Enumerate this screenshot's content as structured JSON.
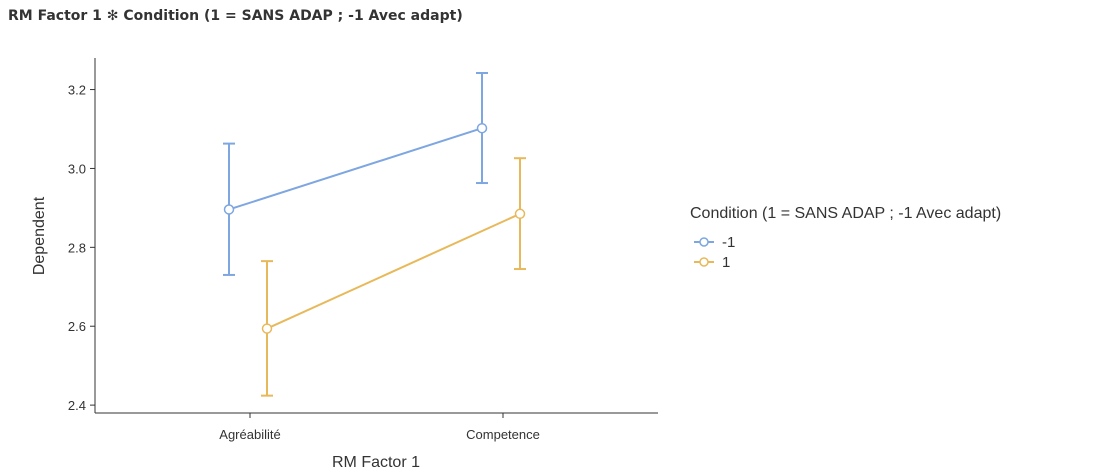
{
  "header": {
    "title_factor": "RM Factor 1",
    "title_symbol": "✻",
    "title_condition": "Condition (1 = SANS ADAP ; -1 Avec adapt)"
  },
  "chart_data": {
    "type": "line",
    "xlabel": "RM Factor 1",
    "ylabel": "Dependent",
    "categories": [
      "Agréabilité",
      "Competence"
    ],
    "ylim": [
      2.38,
      3.28
    ],
    "yticks": [
      2.4,
      2.6,
      2.8,
      3.0,
      3.2
    ],
    "ytick_labels": [
      "2.4",
      "2.6",
      "2.8",
      "3.0",
      "3.2"
    ],
    "grid": false,
    "legend": {
      "title": "Condition (1 = SANS ADAP ; -1 Avec adapt)",
      "placement": "right"
    },
    "series": [
      {
        "name": "-1",
        "color": "#7ea6e0",
        "values": [
          2.896,
          3.102
        ],
        "ci_lower": [
          2.73,
          2.963
        ],
        "ci_upper": [
          3.063,
          3.242
        ]
      },
      {
        "name": "1",
        "color": "#e8b95b",
        "values": [
          2.594,
          2.885
        ],
        "ci_lower": [
          2.424,
          2.745
        ],
        "ci_upper": [
          2.765,
          3.026
        ]
      }
    ]
  }
}
